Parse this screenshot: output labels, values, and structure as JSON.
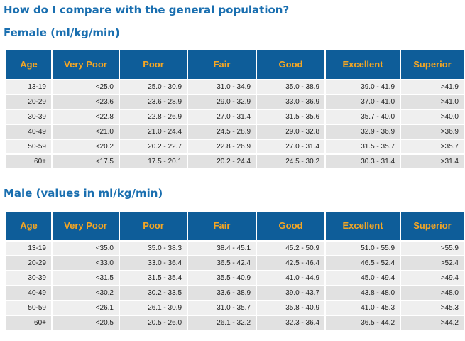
{
  "title": "How do I compare with the general population?",
  "headers": [
    "Age",
    "Very Poor",
    "Poor",
    "Fair",
    "Good",
    "Excellent",
    "Superior"
  ],
  "female": {
    "heading": "Female (ml/kg/min)",
    "rows": [
      [
        "13-19",
        "<25.0",
        "25.0 - 30.9",
        "31.0 - 34.9",
        "35.0 - 38.9",
        "39.0 - 41.9",
        ">41.9"
      ],
      [
        "20-29",
        "<23.6",
        "23.6 - 28.9",
        "29.0 - 32.9",
        "33.0 - 36.9",
        "37.0 - 41.0",
        ">41.0"
      ],
      [
        "30-39",
        "<22.8",
        "22.8 - 26.9",
        "27.0 - 31.4",
        "31.5 - 35.6",
        "35.7 - 40.0",
        ">40.0"
      ],
      [
        "40-49",
        "<21.0",
        "21.0 - 24.4",
        "24.5 - 28.9",
        "29.0 - 32.8",
        "32.9 - 36.9",
        ">36.9"
      ],
      [
        "50-59",
        "<20.2",
        "20.2 - 22.7",
        "22.8 - 26.9",
        "27.0 - 31.4",
        "31.5 - 35.7",
        ">35.7"
      ],
      [
        "60+",
        "<17.5",
        "17.5 - 20.1",
        "20.2 - 24.4",
        "24.5 - 30.2",
        "30.3 - 31.4",
        ">31.4"
      ]
    ]
  },
  "male": {
    "heading": "Male (values in ml/kg/min)",
    "rows": [
      [
        "13-19",
        "<35.0",
        "35.0 - 38.3",
        "38.4 - 45.1",
        "45.2 - 50.9",
        "51.0 - 55.9",
        ">55.9"
      ],
      [
        "20-29",
        "<33.0",
        "33.0 - 36.4",
        "36.5 - 42.4",
        "42.5 - 46.4",
        "46.5 - 52.4",
        ">52.4"
      ],
      [
        "30-39",
        "<31.5",
        "31.5 - 35.4",
        "35.5 - 40.9",
        "41.0 - 44.9",
        "45.0 - 49.4",
        ">49.4"
      ],
      [
        "40-49",
        "<30.2",
        "30.2 - 33.5",
        "33.6 - 38.9",
        "39.0 - 43.7",
        "43.8 - 48.0",
        ">48.0"
      ],
      [
        "50-59",
        "<26.1",
        "26.1 - 30.9",
        "31.0 - 35.7",
        "35.8 - 40.9",
        "41.0 - 45.3",
        ">45.3"
      ],
      [
        "60+",
        "<20.5",
        "20.5 - 26.0",
        "26.1 - 32.2",
        "32.3 - 36.4",
        "36.5 - 44.2",
        ">44.2"
      ]
    ]
  },
  "colors": {
    "heading_text": "#1a6fb0",
    "header_bg": "#0e5d99",
    "header_text": "#f5a623",
    "row_light": "#efefef",
    "row_dark": "#e1e1e1"
  }
}
